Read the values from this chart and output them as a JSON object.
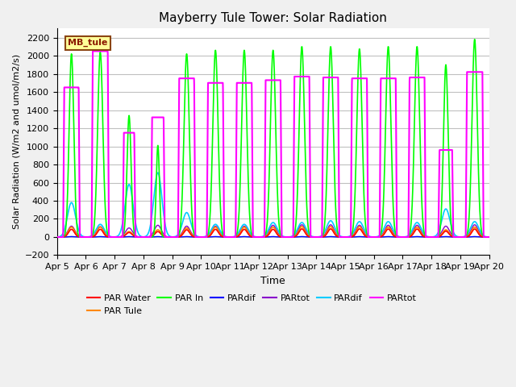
{
  "title": "Mayberry Tule Tower: Solar Radiation",
  "ylabel": "Solar Radiation (W/m2 and umol/m2/s)",
  "xlabel": "Time",
  "ylim": [
    -200,
    2300
  ],
  "yticks": [
    -200,
    0,
    200,
    400,
    600,
    800,
    1000,
    1200,
    1400,
    1600,
    1800,
    2000,
    2200
  ],
  "bg_color": "#f0f0f0",
  "plot_bg": "#ffffff",
  "legend_label": "MB_tule",
  "xticklabels": [
    "Apr 5",
    "Apr 6",
    "Apr 7",
    "Apr 8",
    "Apr 9",
    "Apr 10",
    "Apr 11",
    "Apr 12",
    "Apr 13",
    "Apr 14",
    "Apr 15",
    "Apr 16",
    "Apr 17",
    "Apr 18",
    "Apr 19",
    "Apr 20"
  ],
  "num_days": 15,
  "mag_peaks": [
    1650,
    2050,
    1150,
    1320,
    1750,
    1700,
    1700,
    1730,
    1770,
    1760,
    1750,
    1750,
    1760,
    960,
    1820
  ],
  "grn_peaks": [
    2020,
    2040,
    1340,
    1010,
    2020,
    2060,
    2060,
    2060,
    2100,
    2100,
    2075,
    2100,
    2100,
    1900,
    2180
  ],
  "org_peaks": [
    110,
    110,
    60,
    80,
    100,
    110,
    110,
    110,
    115,
    115,
    115,
    110,
    110,
    80,
    110
  ],
  "red_peaks": [
    85,
    85,
    50,
    60,
    80,
    85,
    85,
    85,
    90,
    90,
    90,
    88,
    88,
    65,
    88
  ],
  "cyn_peaks": [
    380,
    140,
    580,
    710,
    270,
    140,
    140,
    160,
    160,
    180,
    170,
    170,
    160,
    310,
    170
  ],
  "pur_peaks": [
    120,
    115,
    100,
    130,
    120,
    120,
    120,
    130,
    135,
    135,
    130,
    130,
    130,
    120,
    135
  ],
  "blu_peaks": [
    5,
    5,
    5,
    5,
    5,
    5,
    5,
    5,
    5,
    5,
    5,
    5,
    5,
    5,
    5
  ],
  "grn_widths": [
    0.08,
    0.09,
    0.07,
    0.055,
    0.09,
    0.09,
    0.09,
    0.09,
    0.09,
    0.09,
    0.09,
    0.09,
    0.09,
    0.08,
    0.09
  ],
  "mag_widths": [
    0.25,
    0.26,
    0.18,
    0.2,
    0.26,
    0.26,
    0.26,
    0.26,
    0.26,
    0.26,
    0.26,
    0.26,
    0.26,
    0.22,
    0.27
  ]
}
